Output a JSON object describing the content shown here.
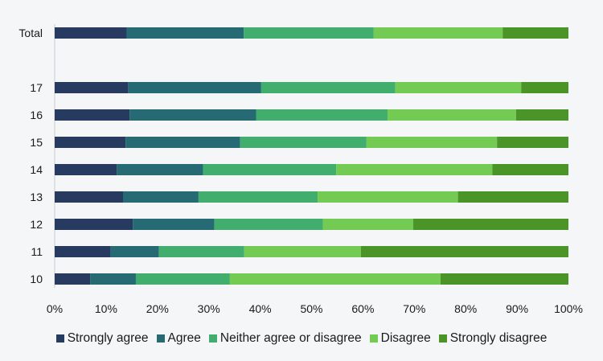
{
  "chart_data": {
    "type": "bar",
    "orientation": "horizontal",
    "stacked": true,
    "percent": true,
    "categories": [
      "Total",
      "17",
      "16",
      "15",
      "14",
      "13",
      "12",
      "11",
      "10"
    ],
    "series": [
      {
        "name": "Strongly agree",
        "color": "#273a5f",
        "values": [
          14,
          14.3,
          14.6,
          13.8,
          12.1,
          13.3,
          15.2,
          10.9,
          6.9
        ]
      },
      {
        "name": "Agree",
        "color": "#266b74",
        "values": [
          22.8,
          25.9,
          24.6,
          22.3,
          16.8,
          14.7,
          15.9,
          9.4,
          8.9
        ]
      },
      {
        "name": "Neither agree or disagree",
        "color": "#41ae6e",
        "values": [
          25.3,
          26.1,
          25.6,
          24.6,
          25.9,
          23.2,
          21.1,
          16.6,
          18.3
        ]
      },
      {
        "name": "Disagree",
        "color": "#73cb53",
        "values": [
          25.1,
          24.5,
          25.0,
          25.4,
          30.4,
          27.3,
          17.6,
          22.7,
          41.0
        ]
      },
      {
        "name": "Strongly disagree",
        "color": "#4a9428",
        "values": [
          12.8,
          9.2,
          10.2,
          13.9,
          14.8,
          21.5,
          30.2,
          40.4,
          24.9
        ]
      }
    ],
    "xlim": [
      0,
      100
    ],
    "xticks": [
      "0%",
      "10%",
      "20%",
      "30%",
      "40%",
      "50%",
      "60%",
      "70%",
      "80%",
      "90%",
      "100%"
    ],
    "grid": false,
    "legend_position": "bottom"
  }
}
